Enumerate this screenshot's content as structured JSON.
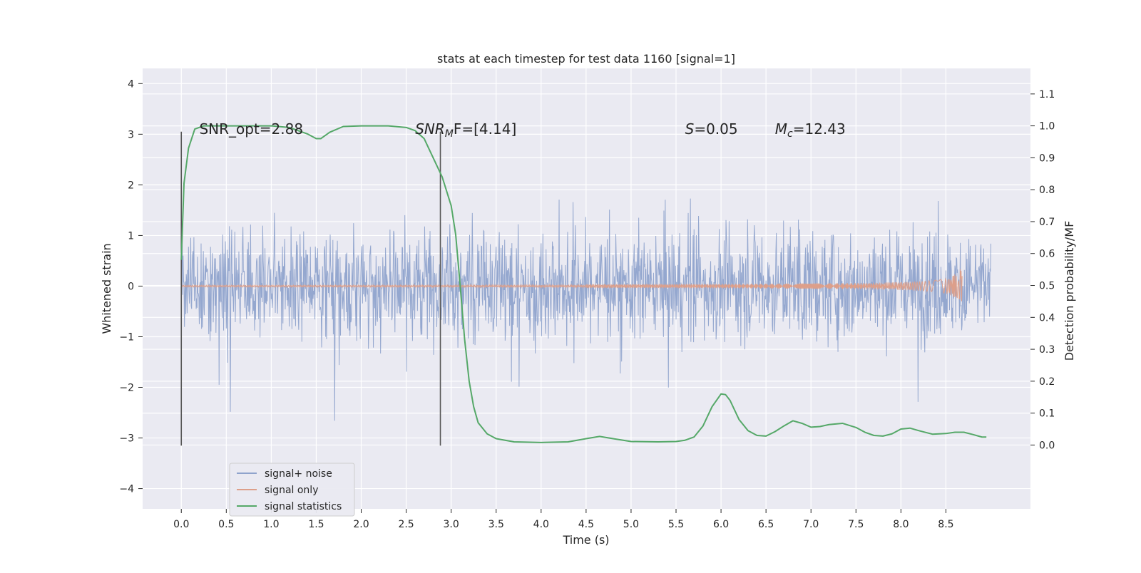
{
  "chart_data": {
    "type": "line",
    "title": "stats at each timestep for test data 1160 [signal=1]",
    "xlabel": "Time (s)",
    "ylabel": "Whitened strain",
    "y2label": "Detection probability/MF",
    "xlim": [
      -0.43,
      9.44
    ],
    "ylim": [
      -4.4,
      4.3
    ],
    "y2lim": [
      -0.2,
      1.18
    ],
    "xticks": [
      0.0,
      0.5,
      1.0,
      1.5,
      2.0,
      2.5,
      3.0,
      3.5,
      4.0,
      4.5,
      5.0,
      5.5,
      6.0,
      6.5,
      7.0,
      7.5,
      8.0,
      8.5
    ],
    "xtick_labels": [
      "0.0",
      "0.5",
      "1.0",
      "1.5",
      "2.0",
      "2.5",
      "3.0",
      "3.5",
      "4.0",
      "4.5",
      "5.0",
      "5.5",
      "6.0",
      "6.5",
      "7.0",
      "7.5",
      "8.0",
      "8.5"
    ],
    "yticks": [
      4,
      3,
      2,
      1,
      0,
      -1,
      -2,
      -3,
      -4
    ],
    "ytick_labels": [
      "4",
      "3",
      "2",
      "1",
      "0",
      "−1",
      "−2",
      "−3",
      "−4"
    ],
    "y2ticks": [
      1.1,
      1.0,
      0.9,
      0.8,
      0.7,
      0.6,
      0.5,
      0.4,
      0.3,
      0.2,
      0.1,
      0.0
    ],
    "y2tick_labels": [
      "1.1",
      "1.0",
      "0.9",
      "0.8",
      "0.7",
      "0.6",
      "0.5",
      "0.4",
      "0.3",
      "0.2",
      "0.1",
      "0.0"
    ],
    "grid": true,
    "legend_position": "lower-left",
    "noise_t_end": 9.0,
    "signal_t_end": 8.68,
    "vlines": [
      {
        "x": 0.0,
        "ymin": -3.15,
        "ymax": 3.05
      },
      {
        "x": 2.88,
        "ymin": -3.15,
        "ymax": 3.05
      }
    ],
    "annotations": [
      {
        "name": "snr-opt",
        "x": 0.2,
        "y": 3.05,
        "text": "SNR_opt=2.88"
      },
      {
        "name": "snr-mf",
        "x": 2.6,
        "y": 3.05,
        "text": "SNR_MF=[4.14]",
        "main": "SNR",
        "sub": "M",
        "rest": "F=[4.14]"
      },
      {
        "name": "s-value",
        "x": 5.6,
        "y": 3.05,
        "text": "S=0.05",
        "main": "S",
        "rest": "=0.05"
      },
      {
        "name": "mc-value",
        "x": 6.6,
        "y": 3.05,
        "text": "Mc=12.43",
        "main": "M",
        "sub": "c",
        "rest": "=12.43"
      }
    ],
    "series": [
      {
        "name": "signal+ noise",
        "color": "#8fa3cc",
        "style": "dense-noise",
        "amplitude": 1.5,
        "t_start": 0.0,
        "t_end": 9.0
      },
      {
        "name": "signal only",
        "color": "#dd9f8a",
        "style": "chirp",
        "t_start": 0.0,
        "t_end": 8.68,
        "peak_amplitude": 0.42
      },
      {
        "name": "signal statistics",
        "color": "#55a868",
        "axis": "right",
        "x": [
          0.0,
          0.03,
          0.08,
          0.15,
          0.25,
          0.5,
          1.0,
          1.2,
          1.4,
          1.5,
          1.55,
          1.65,
          1.8,
          2.0,
          2.3,
          2.5,
          2.6,
          2.7,
          2.8,
          2.9,
          3.0,
          3.05,
          3.1,
          3.15,
          3.2,
          3.25,
          3.3,
          3.4,
          3.5,
          3.7,
          4.0,
          4.3,
          4.5,
          4.65,
          4.8,
          5.0,
          5.3,
          5.5,
          5.6,
          5.7,
          5.8,
          5.9,
          6.0,
          6.05,
          6.1,
          6.2,
          6.3,
          6.4,
          6.5,
          6.6,
          6.7,
          6.8,
          6.9,
          7.0,
          7.1,
          7.2,
          7.35,
          7.5,
          7.6,
          7.7,
          7.8,
          7.9,
          8.0,
          8.1,
          8.2,
          8.35,
          8.5,
          8.6,
          8.7,
          8.8,
          8.9,
          8.95
        ],
        "values": [
          0.58,
          0.82,
          0.93,
          0.99,
          1.0,
          1.0,
          1.0,
          0.995,
          0.975,
          0.96,
          0.96,
          0.98,
          0.998,
          1.0,
          1.0,
          0.995,
          0.985,
          0.96,
          0.9,
          0.84,
          0.75,
          0.66,
          0.5,
          0.33,
          0.2,
          0.12,
          0.07,
          0.035,
          0.02,
          0.01,
          0.008,
          0.01,
          0.02,
          0.027,
          0.02,
          0.011,
          0.01,
          0.011,
          0.015,
          0.025,
          0.06,
          0.12,
          0.16,
          0.158,
          0.14,
          0.08,
          0.045,
          0.03,
          0.028,
          0.042,
          0.06,
          0.076,
          0.068,
          0.056,
          0.058,
          0.064,
          0.068,
          0.055,
          0.04,
          0.03,
          0.028,
          0.035,
          0.05,
          0.053,
          0.045,
          0.034,
          0.036,
          0.04,
          0.04,
          0.033,
          0.025,
          0.025
        ]
      }
    ]
  }
}
